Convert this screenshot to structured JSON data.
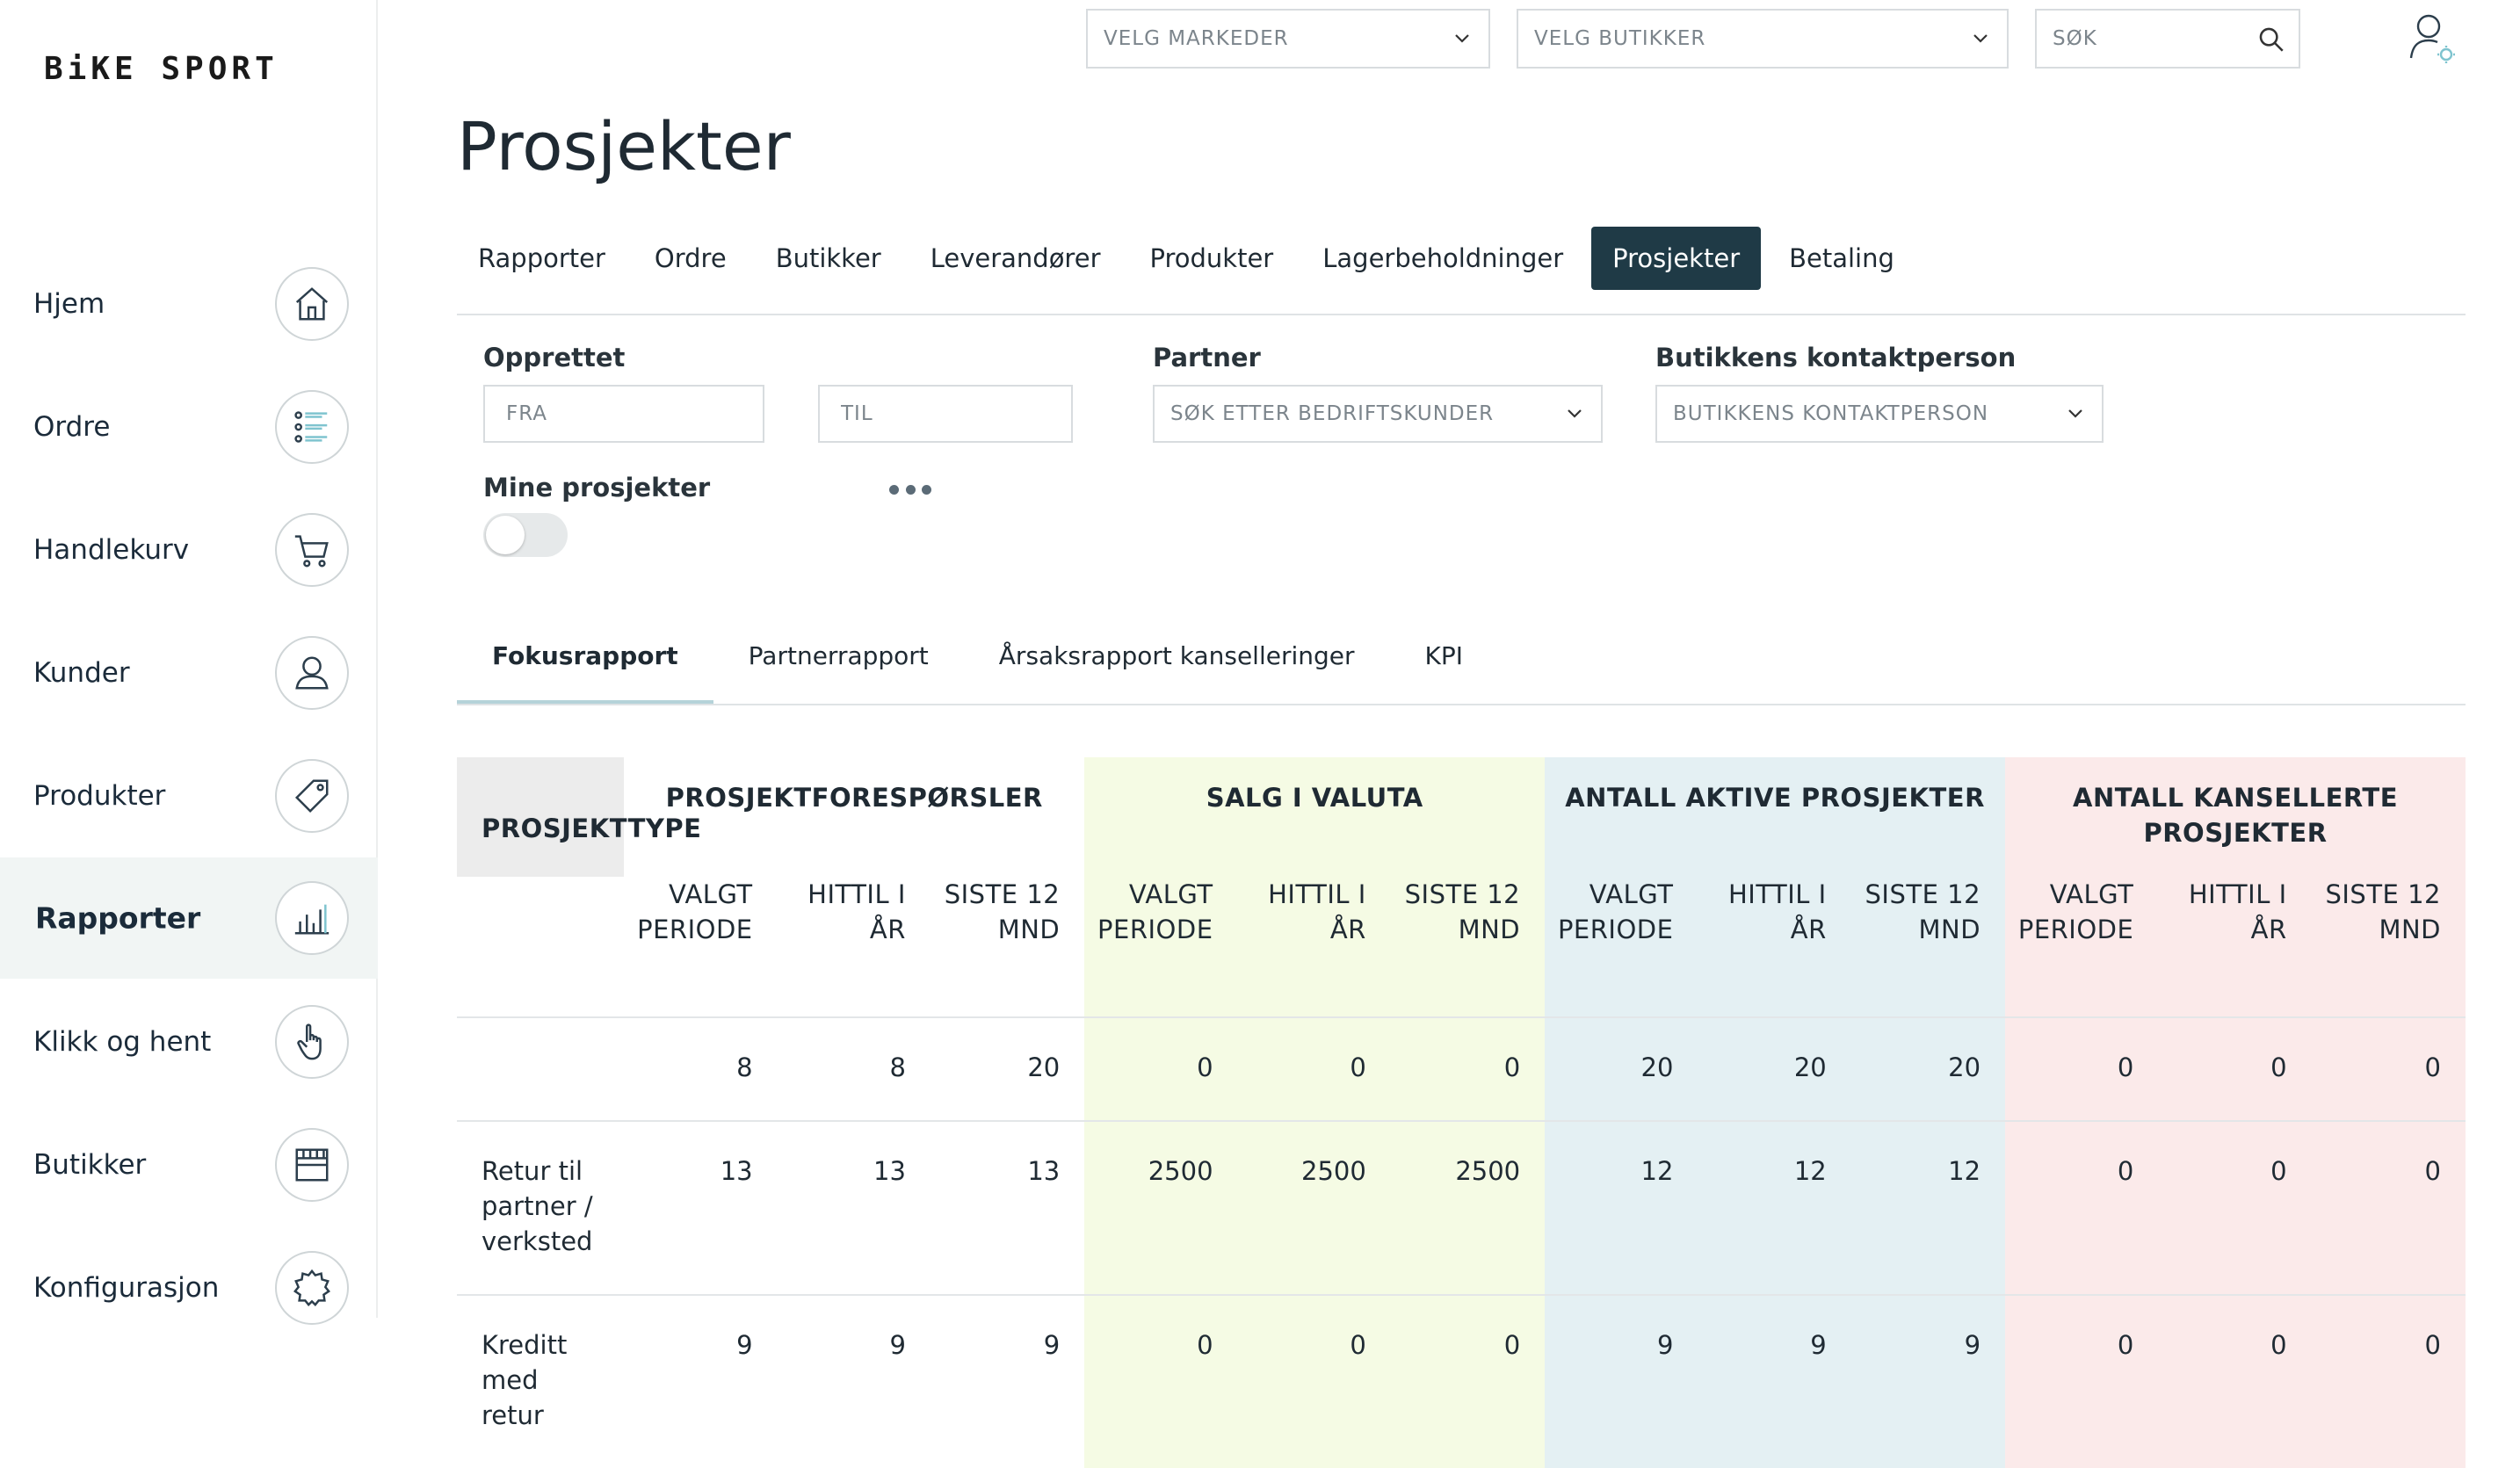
{
  "brand": {
    "logo": "BiKE SPORT"
  },
  "sidebar": {
    "items": [
      {
        "label": "Hjem",
        "icon": "home-icon"
      },
      {
        "label": "Ordre",
        "icon": "list-icon"
      },
      {
        "label": "Handlekurv",
        "icon": "cart-icon"
      },
      {
        "label": "Kunder",
        "icon": "customer-icon"
      },
      {
        "label": "Produkter",
        "icon": "tag-icon"
      },
      {
        "label": "Rapporter",
        "icon": "bar-chart-icon",
        "active": true
      },
      {
        "label": "Klikk og hent",
        "icon": "hand-pointer-icon"
      },
      {
        "label": "Butikker",
        "icon": "store-icon"
      },
      {
        "label": "Konfigurasjon",
        "icon": "gear-icon"
      }
    ]
  },
  "topbar": {
    "markets_placeholder": "VELG MARKEDER",
    "stores_placeholder": "VELG BUTIKKER",
    "search_placeholder": "SØK"
  },
  "page": {
    "title": "Prosjekter"
  },
  "main_tabs": [
    {
      "label": "Rapporter"
    },
    {
      "label": "Ordre"
    },
    {
      "label": "Butikker"
    },
    {
      "label": "Leverandører"
    },
    {
      "label": "Produkter"
    },
    {
      "label": "Lagerbeholdninger"
    },
    {
      "label": "Prosjekter",
      "active": true
    },
    {
      "label": "Betaling"
    }
  ],
  "filters": {
    "created_label": "Opprettet",
    "from_placeholder": "FRA",
    "to_placeholder": "TIL",
    "partner_label": "Partner",
    "partner_placeholder": "SØK ETTER BEDRIFTSKUNDER",
    "contact_label": "Butikkens kontaktperson",
    "contact_placeholder": "BUTIKKENS KONTAKTPERSON",
    "my_projects_label": "Mine prosjekter",
    "my_projects_on": false
  },
  "sub_tabs": [
    {
      "label": "Fokusrapport",
      "active": true
    },
    {
      "label": "Partnerrapport"
    },
    {
      "label": "Årsaksrapport kanselleringer"
    },
    {
      "label": "KPI"
    }
  ],
  "report": {
    "project_type_header": "PROSJEKTTYPE",
    "groups": [
      {
        "title": "PROSJEKTFORESPØRSLER",
        "color": "#ffffff"
      },
      {
        "title": "SALG I VALUTA",
        "color": "#f5fbe4"
      },
      {
        "title": "ANTALL AKTIVE PROSJEKTER",
        "color": "#e4f0f3"
      },
      {
        "title": "ANTALL KANSELLERTE PROSJEKTER",
        "color": "#fbeaea"
      }
    ],
    "sub_headers": [
      "VALGT PERIODE",
      "HITTIL I ÅR",
      "SISTE 12 MND"
    ],
    "rows": [
      {
        "type": "",
        "values": [
          "8",
          "8",
          "20",
          "0",
          "0",
          "0",
          "20",
          "20",
          "20",
          "0",
          "0",
          "0"
        ]
      },
      {
        "type": "Retur til partner / verksted",
        "values": [
          "13",
          "13",
          "13",
          "2500",
          "2500",
          "2500",
          "12",
          "12",
          "12",
          "0",
          "0",
          "0"
        ]
      },
      {
        "type": "Kreditt med retur",
        "values": [
          "9",
          "9",
          "9",
          "0",
          "0",
          "0",
          "9",
          "9",
          "9",
          "0",
          "0",
          "0"
        ]
      }
    ]
  }
}
